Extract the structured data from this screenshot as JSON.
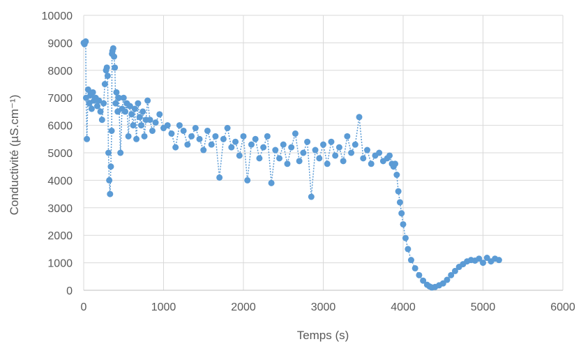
{
  "chart_data": {
    "type": "scatter",
    "title": "",
    "xlabel": "Temps (s)",
    "ylabel": "Conductivité (µS.cm⁻¹)",
    "xlim": [
      0,
      6000
    ],
    "ylim": [
      0,
      10000
    ],
    "x_ticks": [
      "0",
      "1000",
      "2000",
      "3000",
      "4000",
      "5000",
      "6000"
    ],
    "y_ticks": [
      "0",
      "1000",
      "2000",
      "3000",
      "4000",
      "5000",
      "6000",
      "7000",
      "8000",
      "9000",
      "10000"
    ],
    "grid": true,
    "legend": "none",
    "marker_color": "#5B9BD5",
    "line_style": "dotted",
    "series": [
      {
        "x": [
          0,
          10,
          25,
          30,
          40,
          55,
          70,
          85,
          100,
          115,
          130,
          150,
          170,
          190,
          210,
          230,
          250,
          265,
          280,
          290,
          300,
          310,
          320,
          330,
          340,
          350,
          355,
          360,
          370,
          380,
          390,
          400,
          410,
          425,
          440,
          460,
          480,
          500,
          520,
          540,
          560,
          580,
          600,
          620,
          640,
          660,
          680,
          700,
          720,
          740,
          760,
          780,
          800,
          830,
          860,
          900,
          950,
          1000,
          1050,
          1100,
          1150,
          1200,
          1250,
          1300,
          1350,
          1400,
          1450,
          1500,
          1550,
          1600,
          1650,
          1700,
          1750,
          1800,
          1850,
          1900,
          1950,
          2000,
          2050,
          2100,
          2150,
          2200,
          2250,
          2300,
          2350,
          2400,
          2450,
          2500,
          2550,
          2600,
          2650,
          2700,
          2750,
          2800,
          2850,
          2900,
          2950,
          3000,
          3050,
          3100,
          3150,
          3200,
          3250,
          3300,
          3350,
          3400,
          3450,
          3500,
          3550,
          3600,
          3650,
          3700,
          3750,
          3800,
          3830,
          3860,
          3880,
          3900,
          3920,
          3940,
          3960,
          3980,
          4000,
          4030,
          4060,
          4100,
          4150,
          4200,
          4250,
          4300,
          4330,
          4360,
          4400,
          4450,
          4500,
          4550,
          4600,
          4650,
          4700,
          4750,
          4800,
          4850,
          4900,
          4950,
          5000,
          5050,
          5100,
          5150,
          5200
        ],
        "y": [
          9000,
          8950,
          9050,
          7000,
          5500,
          7300,
          6800,
          7100,
          6600,
          7200,
          6900,
          7000,
          6700,
          6900,
          6500,
          6200,
          6800,
          7500,
          8000,
          8100,
          7800,
          5000,
          4000,
          3500,
          4500,
          5800,
          8600,
          8700,
          8800,
          8500,
          8100,
          6800,
          7200,
          6500,
          7000,
          5000,
          6600,
          7000,
          6500,
          6800,
          5600,
          6700,
          6400,
          6000,
          6600,
          5500,
          6800,
          6300,
          6000,
          6500,
          5600,
          6200,
          6900,
          6200,
          5800,
          6100,
          6400,
          5900,
          6000,
          5700,
          5200,
          6000,
          5800,
          5300,
          5600,
          5900,
          5500,
          5100,
          5800,
          5300,
          5600,
          4100,
          5500,
          5900,
          5200,
          5400,
          4900,
          5600,
          4000,
          5300,
          5500,
          4800,
          5200,
          5600,
          3900,
          5100,
          4800,
          5300,
          4600,
          5200,
          5700,
          4700,
          5000,
          5400,
          3400,
          5100,
          4800,
          5300,
          4600,
          5400,
          4900,
          5200,
          4700,
          5600,
          5000,
          5300,
          6300,
          4800,
          5100,
          4600,
          4900,
          5000,
          4700,
          4800,
          4900,
          4600,
          4500,
          4600,
          4200,
          3600,
          3200,
          2800,
          2400,
          1900,
          1500,
          1100,
          800,
          550,
          350,
          200,
          140,
          100,
          120,
          180,
          250,
          380,
          550,
          700,
          850,
          950,
          1050,
          1100,
          1080,
          1150,
          1000,
          1180,
          1050,
          1150,
          1100
        ]
      }
    ]
  }
}
